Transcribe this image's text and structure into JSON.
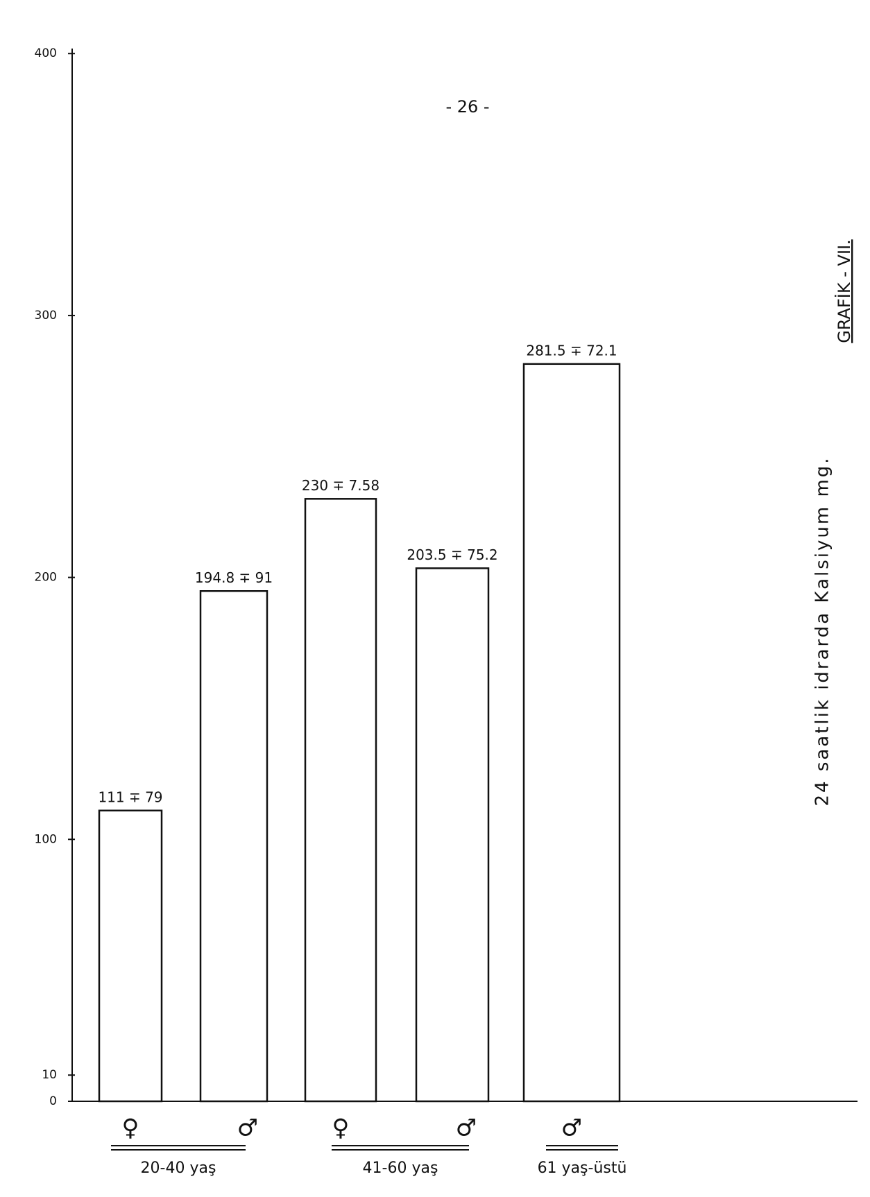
{
  "page_number": "- 26 -",
  "chart_data": {
    "type": "bar",
    "title": "GRAFİK - VII.",
    "y_label": "24 saatlik idrarda Kalsiyum mg.",
    "categories": [
      "♀",
      "♂",
      "♀",
      "♂",
      "♂"
    ],
    "values": [
      111,
      194.8,
      230,
      203.5,
      281.5
    ],
    "value_labels": [
      "111 ∓ 79",
      "194.8 ∓ 91",
      "230 ∓ 7.58",
      "203.5 ∓ 75.2",
      "281.5 ∓ 72.1"
    ],
    "group_labels": [
      "20-40 yaş",
      "41-60 yaş",
      "61 yaş-üstü"
    ],
    "color": "#ffffff",
    "ylim": [
      0,
      420
    ],
    "yticks": [
      0,
      10,
      100,
      200,
      300,
      400
    ]
  }
}
